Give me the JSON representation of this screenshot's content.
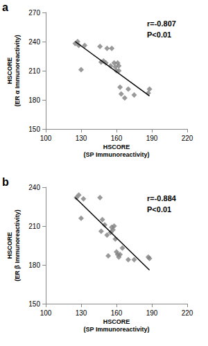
{
  "chart_data": [
    {
      "type": "scatter",
      "panel_label": "a",
      "x_label": "HSCORE\n(SP Immunoreactivity)",
      "y_label": "HSCORE\n(ER α Immunoreactivity)",
      "annotations": [
        "r=-0.807",
        "P<0.01"
      ],
      "x": [
        125,
        127,
        128,
        130,
        133,
        146,
        147,
        149,
        151,
        152,
        155,
        156,
        158,
        159,
        160,
        161,
        162,
        162,
        163,
        164,
        167,
        170,
        175,
        187,
        188
      ],
      "values": [
        238,
        240,
        236,
        211,
        236,
        235,
        219,
        220,
        218,
        233,
        215,
        233,
        218,
        214,
        210,
        218,
        215,
        210,
        193,
        186,
        182,
        191,
        185,
        187,
        191
      ],
      "fit_line": {
        "x": [
          125,
          188
        ],
        "values": [
          240,
          184
        ]
      },
      "color": "#808080",
      "marker": "diamond",
      "xlim": [
        100,
        220
      ],
      "xticks": [
        100,
        130,
        160,
        190,
        220
      ],
      "ylim": [
        150,
        270
      ],
      "yticks": [
        150,
        180,
        210,
        240,
        270
      ],
      "grid": false
    },
    {
      "type": "scatter",
      "panel_label": "b",
      "x_label": "HSCORE\n(SP Immunoreactivity)",
      "y_label": "HSCORE\n(ER β Immunoreactivity)",
      "annotations": [
        "r=-0.884",
        "P<0.01"
      ],
      "x": [
        126,
        128,
        130,
        132,
        146,
        147,
        148,
        150,
        152,
        153,
        155,
        156,
        157,
        158,
        159,
        160,
        161,
        162,
        163,
        165,
        170,
        175,
        187,
        188
      ],
      "values": [
        232,
        234,
        216,
        231,
        232,
        206,
        215,
        211,
        203,
        187,
        205,
        209,
        207,
        210,
        200,
        190,
        188,
        186,
        188,
        193,
        184,
        184,
        186,
        185
      ],
      "fit_line": {
        "x": [
          125,
          188
        ],
        "values": [
          232,
          176
        ]
      },
      "color": "#808080",
      "marker": "diamond",
      "xlim": [
        100,
        220
      ],
      "xticks": [
        100,
        130,
        160,
        190,
        220
      ],
      "ylim": [
        150,
        240
      ],
      "yticks": [
        150,
        180,
        210,
        240
      ],
      "grid": false
    }
  ]
}
